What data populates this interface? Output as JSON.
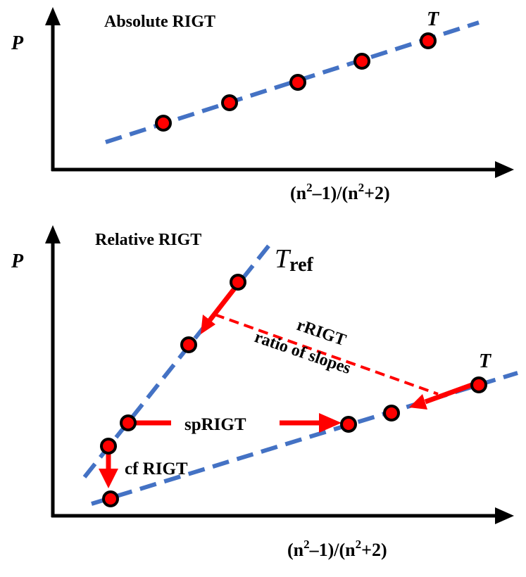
{
  "top_panel": {
    "title": "Absolute RIGT",
    "y_label": "P",
    "x_label": {
      "p1": "(n",
      "s1": "2",
      "p2": "–1)/(n",
      "s2": "2",
      "p3": "+2)"
    },
    "line_label": "T"
  },
  "bottom_panel": {
    "title": "Relative RIGT",
    "y_label": "P",
    "x_label": {
      "p1": "(n",
      "s1": "2",
      "p2": "–1)/(n",
      "s2": "2",
      "p3": "+2)"
    },
    "ref_line_label": {
      "main": "T",
      "sub": "ref"
    },
    "line_label": "T",
    "annotations": {
      "rrigt": "rRIGT",
      "ratio": "ratio of slopes",
      "sprigt": "spRIGT",
      "cfrigt": "cf RIGT"
    }
  },
  "colors": {
    "axis": "#000000",
    "fit_line": "#4472C4",
    "point_fill": "#FF0000",
    "point_stroke": "#000000",
    "arrow": "#FF0000"
  }
}
